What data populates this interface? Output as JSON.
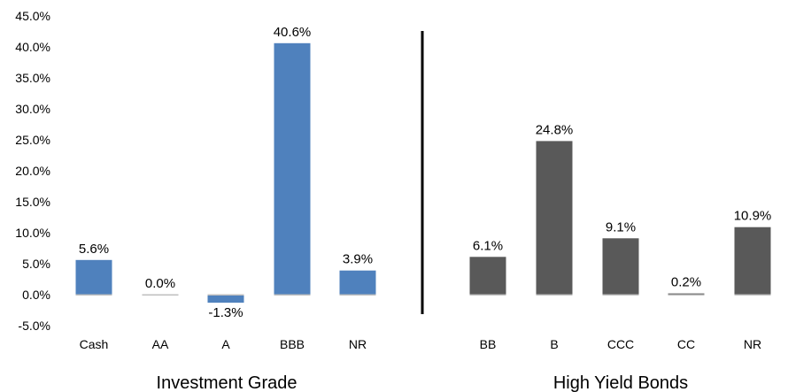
{
  "chart_data": {
    "type": "bar",
    "title": "",
    "xlabel": "",
    "ylabel": "",
    "ylim": [
      -5,
      45
    ],
    "yticks": [
      -5,
      0,
      5,
      10,
      15,
      20,
      25,
      30,
      35,
      40,
      45
    ],
    "ytick_labels": [
      "-5.0%",
      "0.0%",
      "5.0%",
      "10.0%",
      "15.0%",
      "20.0%",
      "25.0%",
      "30.0%",
      "35.0%",
      "40.0%",
      "45.0%"
    ],
    "grid": false,
    "legend": "none",
    "groups": [
      {
        "name": "Investment Grade",
        "color": "#4f81bd",
        "categories": [
          "Cash",
          "AA",
          "A",
          "BBB",
          "NR"
        ],
        "values": [
          5.6,
          0.0,
          -1.3,
          40.6,
          3.9
        ],
        "labels": [
          "5.6%",
          "0.0%",
          "-1.3%",
          "40.6%",
          "3.9%"
        ]
      },
      {
        "name": "High Yield Bonds",
        "color": "#595959",
        "categories": [
          "BB",
          "B",
          "CCC",
          "CC",
          "NR"
        ],
        "values": [
          6.1,
          24.8,
          9.1,
          0.2,
          10.9
        ],
        "labels": [
          "6.1%",
          "24.8%",
          "9.1%",
          "0.2%",
          "10.9%"
        ]
      }
    ],
    "divider": true
  }
}
